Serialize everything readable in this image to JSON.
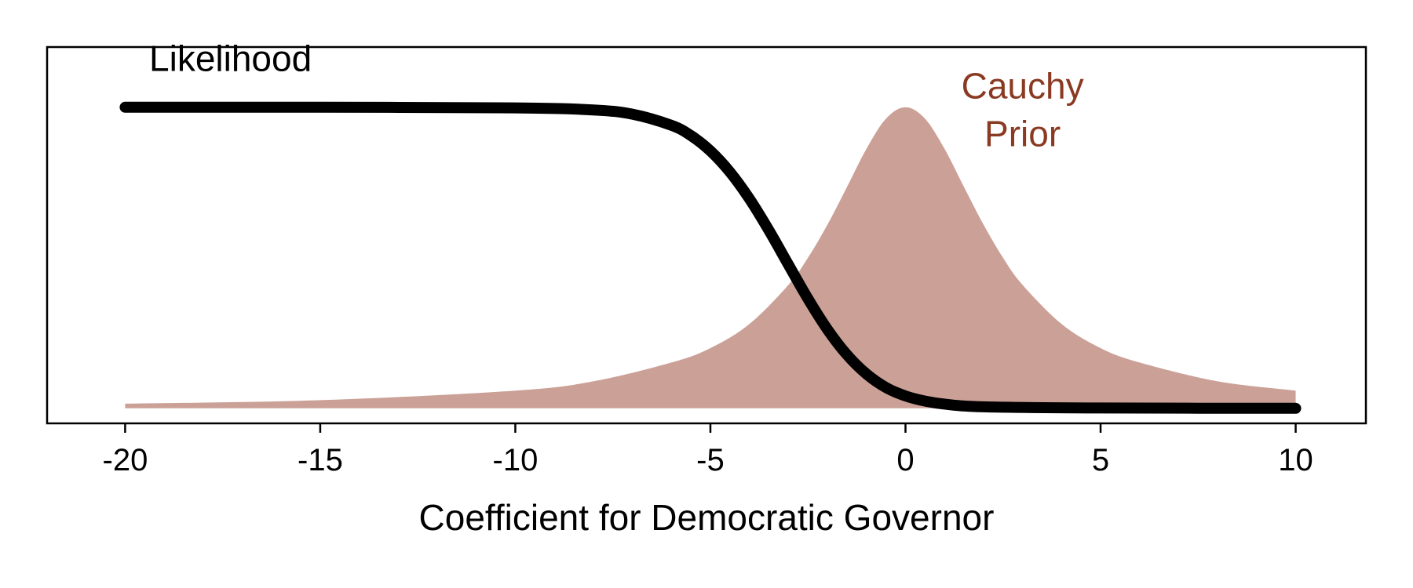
{
  "chart_data": {
    "type": "area",
    "title": "",
    "xlabel": "Coefficient for Democratic Governor",
    "ylabel": "",
    "xlim": [
      -22,
      11.8
    ],
    "ylim": [
      -0.05,
      1.2
    ],
    "x_ticks": [
      -20,
      -15,
      -10,
      -5,
      0,
      5,
      10
    ],
    "x_tick_labels": [
      "-20",
      "-15",
      "-10",
      "-5",
      "0",
      "5",
      "10"
    ],
    "y_ticks": [],
    "grid": false,
    "legend": "none",
    "series": [
      {
        "name": "Likelihood",
        "kind": "line",
        "color": "#000000",
        "x": [
          -20,
          -15,
          -10,
          -8,
          -7,
          -6,
          -5.5,
          -5,
          -4.5,
          -4,
          -3.5,
          -3,
          -2.5,
          -2,
          -1.5,
          -1,
          -0.5,
          0,
          0.5,
          1,
          2,
          5,
          10
        ],
        "y": [
          1.0,
          1.0,
          0.998,
          0.991,
          0.977,
          0.94,
          0.906,
          0.855,
          0.785,
          0.696,
          0.591,
          0.477,
          0.364,
          0.262,
          0.178,
          0.114,
          0.069,
          0.041,
          0.024,
          0.014,
          0.005,
          0.001,
          0.0
        ]
      },
      {
        "name": "Cauchy Prior",
        "kind": "area",
        "color": "#8b3a22",
        "fill": "#c29185",
        "x": [
          -20,
          -15,
          -10,
          -8,
          -6,
          -5,
          -4,
          -3,
          -2.5,
          -2,
          -1.5,
          -1,
          -0.5,
          0,
          0.5,
          1,
          1.5,
          2,
          2.5,
          3,
          4,
          5,
          6,
          8,
          10
        ],
        "y": [
          0.0155,
          0.027,
          0.0588,
          0.0897,
          0.152,
          0.2,
          0.28,
          0.41,
          0.5,
          0.61,
          0.735,
          0.862,
          0.962,
          1.0,
          0.962,
          0.862,
          0.735,
          0.61,
          0.5,
          0.41,
          0.28,
          0.2,
          0.152,
          0.0897,
          0.0588
        ]
      }
    ],
    "annotations": [
      {
        "text": "Likelihood",
        "x": -17.3,
        "y": 1.12,
        "color": "#000000"
      },
      {
        "text": "Cauchy",
        "x": 3,
        "y": 1.03,
        "color": "#8b3a22"
      },
      {
        "text": "Prior",
        "x": 3,
        "y": 0.87,
        "color": "#8b3a22"
      }
    ]
  }
}
